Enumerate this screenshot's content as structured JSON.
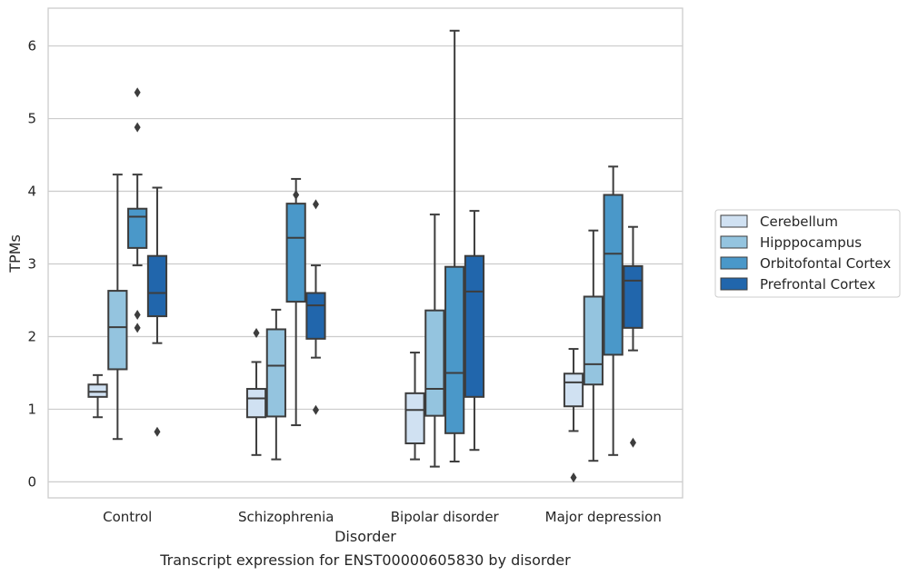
{
  "chart_data": {
    "type": "box",
    "title": "",
    "caption": "Transcript expression for ENST00000605830 by disorder",
    "xlabel": "Disorder",
    "ylabel": "TPMs",
    "ylim": [
      -0.22,
      6.52
    ],
    "yticks": [
      0,
      1,
      2,
      3,
      4,
      5,
      6
    ],
    "grid": "horizontal",
    "legend_position": "right",
    "categories": [
      "Control",
      "Schizophrenia",
      "Bipolar disorder",
      "Major depression"
    ],
    "series": [
      {
        "name": "Cerebellum",
        "color": "#d0e1f2",
        "boxes": [
          {
            "whisker_low": 0.89,
            "q1": 1.17,
            "median": 1.24,
            "q3": 1.34,
            "whisker_high": 1.47,
            "outliers": []
          },
          {
            "whisker_low": 0.37,
            "q1": 0.89,
            "median": 1.15,
            "q3": 1.28,
            "whisker_high": 1.65,
            "outliers": [
              2.05
            ]
          },
          {
            "whisker_low": 0.31,
            "q1": 0.53,
            "median": 0.99,
            "q3": 1.22,
            "whisker_high": 1.78,
            "outliers": []
          },
          {
            "whisker_low": 0.7,
            "q1": 1.04,
            "median": 1.37,
            "q3": 1.49,
            "whisker_high": 1.83,
            "outliers": [
              0.06
            ]
          }
        ]
      },
      {
        "name": "Hipppocampus",
        "color": "#94c4df",
        "boxes": [
          {
            "whisker_low": 0.59,
            "q1": 1.55,
            "median": 2.13,
            "q3": 2.63,
            "whisker_high": 4.23,
            "outliers": []
          },
          {
            "whisker_low": 0.31,
            "q1": 0.9,
            "median": 1.6,
            "q3": 2.1,
            "whisker_high": 2.37,
            "outliers": []
          },
          {
            "whisker_low": 0.21,
            "q1": 0.91,
            "median": 1.28,
            "q3": 2.36,
            "whisker_high": 3.68,
            "outliers": []
          },
          {
            "whisker_low": 0.29,
            "q1": 1.34,
            "median": 1.62,
            "q3": 2.55,
            "whisker_high": 3.46,
            "outliers": []
          }
        ]
      },
      {
        "name": "Orbitofontal Cortex",
        "color": "#4a98c9",
        "boxes": [
          {
            "whisker_low": 2.98,
            "q1": 3.22,
            "median": 3.65,
            "q3": 3.76,
            "whisker_high": 4.23,
            "outliers": [
              5.36,
              4.88,
              2.3,
              2.12
            ]
          },
          {
            "whisker_low": 0.78,
            "q1": 2.48,
            "median": 3.36,
            "q3": 3.83,
            "whisker_high": 4.17,
            "outliers": [
              3.95
            ]
          },
          {
            "whisker_low": 0.28,
            "q1": 0.67,
            "median": 1.5,
            "q3": 2.96,
            "whisker_high": 6.21,
            "outliers": []
          },
          {
            "whisker_low": 0.37,
            "q1": 1.75,
            "median": 3.14,
            "q3": 3.95,
            "whisker_high": 4.34,
            "outliers": []
          }
        ]
      },
      {
        "name": "Prefrontal Cortex",
        "color": "#2166ac",
        "boxes": [
          {
            "whisker_low": 1.91,
            "q1": 2.28,
            "median": 2.6,
            "q3": 3.11,
            "whisker_high": 4.05,
            "outliers": [
              0.69
            ]
          },
          {
            "whisker_low": 1.71,
            "q1": 1.97,
            "median": 2.43,
            "q3": 2.6,
            "whisker_high": 2.98,
            "outliers": [
              3.82,
              0.99
            ]
          },
          {
            "whisker_low": 0.44,
            "q1": 1.17,
            "median": 2.62,
            "q3": 3.11,
            "whisker_high": 3.73,
            "outliers": []
          },
          {
            "whisker_low": 1.81,
            "q1": 2.12,
            "median": 2.77,
            "q3": 2.97,
            "whisker_high": 3.51,
            "outliers": [
              0.54
            ]
          }
        ]
      }
    ]
  }
}
